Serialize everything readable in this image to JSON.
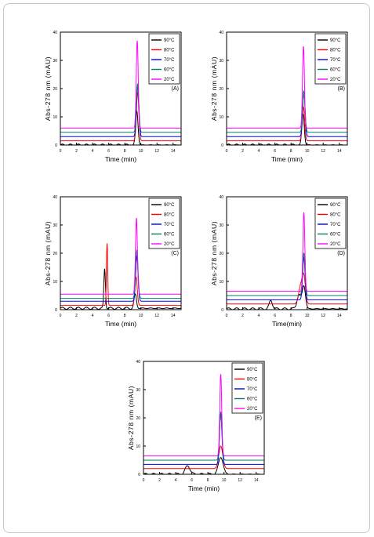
{
  "figure": {
    "accent": "#000000",
    "line_colors": [
      "#000000",
      "#ff0000",
      "#0000ff",
      "#008060",
      "#ff00ff"
    ]
  },
  "chart_data": [
    {
      "type": "line",
      "panel_label": "(A)",
      "xlabel": "Time (min)",
      "ylabel": "Abs-278 nm (mAU)",
      "xlim": [
        0,
        15
      ],
      "ylim": [
        0,
        40
      ],
      "xticks": [
        0,
        2,
        4,
        6,
        8,
        10,
        12,
        14
      ],
      "yticks": [
        0,
        10,
        20,
        30,
        40
      ],
      "x_tick_labels": [
        "0",
        "2",
        "4",
        "6",
        "8",
        "10",
        "12",
        "14"
      ],
      "y_tick_labels": [
        "0",
        "10",
        "20",
        "30",
        "40"
      ],
      "legend_position": "top-right",
      "series": [
        {
          "name": "90°C",
          "color": "#000000",
          "baseline": 0,
          "peaks": [
            [
              9.5,
              12,
              0.15
            ]
          ]
        },
        {
          "name": "80°C",
          "color": "#ff0000",
          "baseline": 1.5,
          "peaks": [
            [
              9.6,
              17,
              0.15
            ]
          ]
        },
        {
          "name": "70°C",
          "color": "#0000ff",
          "baseline": 3,
          "peaks": [
            [
              9.6,
              18,
              0.15
            ]
          ]
        },
        {
          "name": "60°C",
          "color": "#008060",
          "baseline": 4.5,
          "peaks": [
            [
              9.6,
              17,
              0.15
            ]
          ]
        },
        {
          "name": "20°C",
          "color": "#ff00ff",
          "baseline": 6,
          "peaks": [
            [
              9.55,
              31,
              0.12
            ]
          ]
        }
      ]
    },
    {
      "type": "line",
      "panel_label": "(B)",
      "xlabel": "Time (min)",
      "ylabel": "Abs-278 nm (mAU)",
      "xlim": [
        0,
        15
      ],
      "ylim": [
        0,
        40
      ],
      "xticks": [
        0,
        2,
        4,
        6,
        8,
        10,
        12,
        14
      ],
      "yticks": [
        0,
        10,
        20,
        30,
        40
      ],
      "x_tick_labels": [
        "0",
        "2",
        "4",
        "6",
        "8",
        "10",
        "12",
        "14"
      ],
      "y_tick_labels": [
        "0",
        "10",
        "20",
        "30",
        "40"
      ],
      "legend_position": "top-right",
      "series": [
        {
          "name": "90°C",
          "color": "#000000",
          "baseline": 0,
          "peaks": [
            [
              9.5,
              11,
              0.15
            ]
          ]
        },
        {
          "name": "80°C",
          "color": "#ff0000",
          "baseline": 1.5,
          "peaks": [
            [
              9.55,
              12,
              0.15
            ]
          ]
        },
        {
          "name": "70°C",
          "color": "#0000ff",
          "baseline": 3,
          "peaks": [
            [
              9.6,
              16,
              0.15
            ]
          ]
        },
        {
          "name": "60°C",
          "color": "#008060",
          "baseline": 4.5,
          "peaks": [
            [
              9.6,
              14,
              0.15
            ]
          ]
        },
        {
          "name": "20°C",
          "color": "#ff00ff",
          "baseline": 6,
          "peaks": [
            [
              9.55,
              29,
              0.12
            ]
          ]
        }
      ]
    },
    {
      "type": "line",
      "panel_label": "(C)",
      "xlabel": "Time (min)",
      "ylabel": "Abs-278 nm (mAU)",
      "xlim": [
        0,
        15
      ],
      "ylim": [
        0,
        40
      ],
      "xticks": [
        0,
        2,
        4,
        6,
        8,
        10,
        12,
        14
      ],
      "yticks": [
        0,
        10,
        20,
        30,
        40
      ],
      "x_tick_labels": [
        "0",
        "2",
        "4",
        "6",
        "8",
        "10",
        "12",
        "14"
      ],
      "y_tick_labels": [
        "0",
        "10",
        "20",
        "30",
        "40"
      ],
      "legend_position": "top-right",
      "series": [
        {
          "name": "90°C",
          "color": "#000000",
          "baseline": 0.5,
          "peaks": [
            [
              5.5,
              14,
              0.1
            ],
            [
              9.3,
              5,
              0.15
            ]
          ]
        },
        {
          "name": "80°C",
          "color": "#ff0000",
          "baseline": 1.5,
          "peaks": [
            [
              5.8,
              22,
              0.08
            ],
            [
              9.4,
              10,
              0.15
            ]
          ]
        },
        {
          "name": "70°C",
          "color": "#0000ff",
          "baseline": 3,
          "peaks": [
            [
              9.5,
              16,
              0.15
            ]
          ]
        },
        {
          "name": "60°C",
          "color": "#008060",
          "baseline": 4,
          "peaks": [
            [
              9.5,
              17,
              0.15
            ]
          ]
        },
        {
          "name": "20°C",
          "color": "#ff00ff",
          "baseline": 5.5,
          "peaks": [
            [
              9.45,
              27,
              0.12
            ]
          ]
        }
      ]
    },
    {
      "type": "line",
      "panel_label": "(D)",
      "xlabel": "Time(min)",
      "ylabel": "Abs-278 nm (mAU)",
      "xlim": [
        0,
        15
      ],
      "ylim": [
        0,
        40
      ],
      "xticks": [
        0,
        2,
        4,
        6,
        8,
        10,
        12,
        14
      ],
      "yticks": [
        0,
        10,
        20,
        30,
        40
      ],
      "x_tick_labels": [
        "0",
        "2",
        "4",
        "6",
        "8",
        "10",
        "12",
        "14"
      ],
      "y_tick_labels": [
        "0",
        "10",
        "20",
        "30",
        "40"
      ],
      "legend_position": "top-right",
      "series": [
        {
          "name": "90°C",
          "color": "#000000",
          "baseline": 0.3,
          "peaks": [
            [
              5.5,
              3,
              0.2
            ],
            [
              9.0,
              5,
              0.25
            ],
            [
              9.6,
              8,
              0.2
            ]
          ]
        },
        {
          "name": "80°C",
          "color": "#ff0000",
          "baseline": 2,
          "peaks": [
            [
              9.2,
              6,
              0.25
            ],
            [
              9.6,
              9,
              0.2
            ]
          ]
        },
        {
          "name": "70°C",
          "color": "#0000ff",
          "baseline": 3.5,
          "peaks": [
            [
              9.6,
              15,
              0.15
            ]
          ]
        },
        {
          "name": "60°C",
          "color": "#008060",
          "baseline": 5,
          "peaks": [
            [
              9.6,
              15,
              0.15
            ]
          ]
        },
        {
          "name": "20°C",
          "color": "#ff00ff",
          "baseline": 6.5,
          "peaks": [
            [
              9.6,
              28,
              0.12
            ]
          ]
        }
      ]
    },
    {
      "type": "line",
      "panel_label": "(E)",
      "xlabel": "Time (min)",
      "ylabel": "Abs-278 nm (mAU)",
      "xlim": [
        0,
        15
      ],
      "ylim": [
        0,
        40
      ],
      "xticks": [
        0,
        2,
        4,
        6,
        8,
        10,
        12,
        14
      ],
      "yticks": [
        0,
        10,
        20,
        30,
        40
      ],
      "x_tick_labels": [
        "0",
        "2",
        "4",
        "6",
        "8",
        "10",
        "12",
        "14"
      ],
      "y_tick_labels": [
        "0",
        "10",
        "20",
        "30",
        "40"
      ],
      "legend_position": "top-right",
      "series": [
        {
          "name": "90°C",
          "color": "#000000",
          "baseline": 0,
          "peaks": [
            [
              5.5,
              3,
              0.3
            ],
            [
              9.6,
              6,
              0.3
            ]
          ]
        },
        {
          "name": "80°C",
          "color": "#ff0000",
          "baseline": 2,
          "peaks": [
            [
              9.6,
              8,
              0.25
            ]
          ]
        },
        {
          "name": "70°C",
          "color": "#0000ff",
          "baseline": 3.5,
          "peaks": [
            [
              9.6,
              18,
              0.15
            ]
          ]
        },
        {
          "name": "60°C",
          "color": "#008060",
          "baseline": 5,
          "peaks": [
            [
              9.6,
              17,
              0.15
            ]
          ]
        },
        {
          "name": "20°C",
          "color": "#ff00ff",
          "baseline": 6.5,
          "peaks": [
            [
              9.6,
              29,
              0.12
            ]
          ]
        }
      ]
    }
  ]
}
